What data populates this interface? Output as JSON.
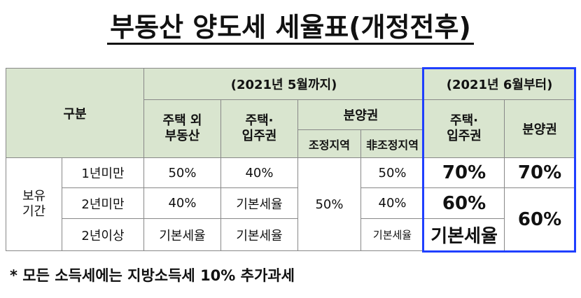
{
  "header": {
    "title": "부동산 양도세 세율표(개정전후)"
  },
  "table": {
    "corner": "구분",
    "group_before": "(2021년 5월까지)",
    "group_after": "(2021년 6월부터)",
    "before_columns": {
      "house_other": [
        "주택 외",
        "부동산"
      ],
      "house": [
        "주택·",
        "입주권"
      ],
      "presale": "분양권",
      "presale_sub": [
        "조정지역",
        "非조정지역"
      ]
    },
    "after_columns": {
      "house": [
        "주택·",
        "입주권"
      ],
      "presale": "분양권"
    },
    "row_group": [
      "보유",
      "기간"
    ],
    "rows": [
      {
        "period": "1년미만",
        "cells": [
          "50%",
          "40%",
          "50%",
          "50%",
          "70%",
          "70%"
        ]
      },
      {
        "period": "2년미만",
        "cells": [
          "40%",
          "기본세율",
          "40%",
          "60%",
          "60%"
        ]
      },
      {
        "period": "2년이상",
        "cells": [
          "기본세율",
          "기본세율",
          "기본세율",
          "기본세율"
        ]
      }
    ]
  },
  "footnote": "* 모든 소득세에는 지방소득세 10% 추가과세"
}
